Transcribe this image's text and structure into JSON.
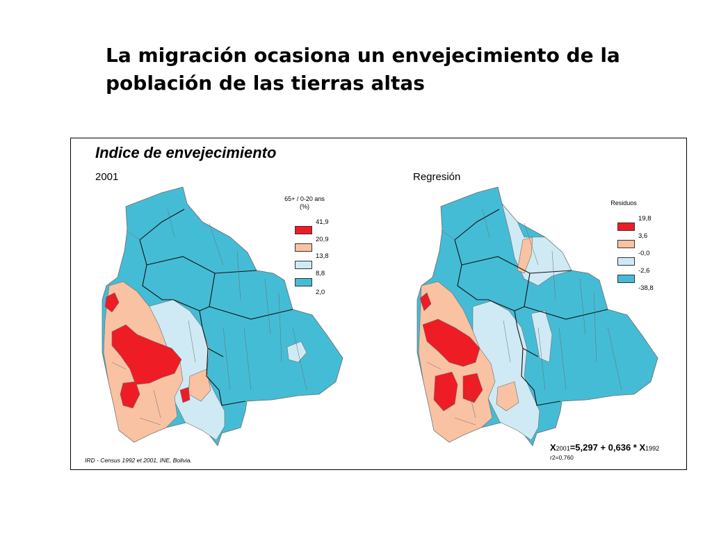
{
  "slide": {
    "title_line1": "La migración ocasiona un envejecimiento de la",
    "title_line2": "población de las tierras altas"
  },
  "figure": {
    "title": "Indice de envejecimiento",
    "left_map_label": "2001",
    "right_map_label": "Regresión",
    "source": "IRD - Census 1992 et 2001, INE, Bolivia.",
    "equation": {
      "x": "X",
      "sub1": "2001",
      "mid": "=5,297 + 0,636 * X",
      "sub2": "1992"
    },
    "r2": "r2=0,760"
  },
  "legend_left": {
    "title_line1": "65+ / 0-20 ans",
    "title_line2": "(%)",
    "values": [
      "41,9",
      "20,9",
      "13,8",
      "8,8",
      "2,0"
    ],
    "colors": [
      "#ee1c25",
      "#f9c2a3",
      "#cfeaf4",
      "#45bcd6"
    ]
  },
  "legend_right": {
    "title": "Residuos",
    "values": [
      "19,8",
      "3,6",
      "-0,0",
      "-2,6",
      "-38,8"
    ],
    "colors": [
      "#ee1c25",
      "#f9c2a3",
      "#cfeaf4",
      "#45bcd6"
    ]
  },
  "map_colors": {
    "high": "#ee1c25",
    "mid_high": "#f9c2a3",
    "mid_low": "#cfeaf4",
    "low": "#45bcd6",
    "border": "#6b6b6b",
    "dept_border": "#111111"
  }
}
